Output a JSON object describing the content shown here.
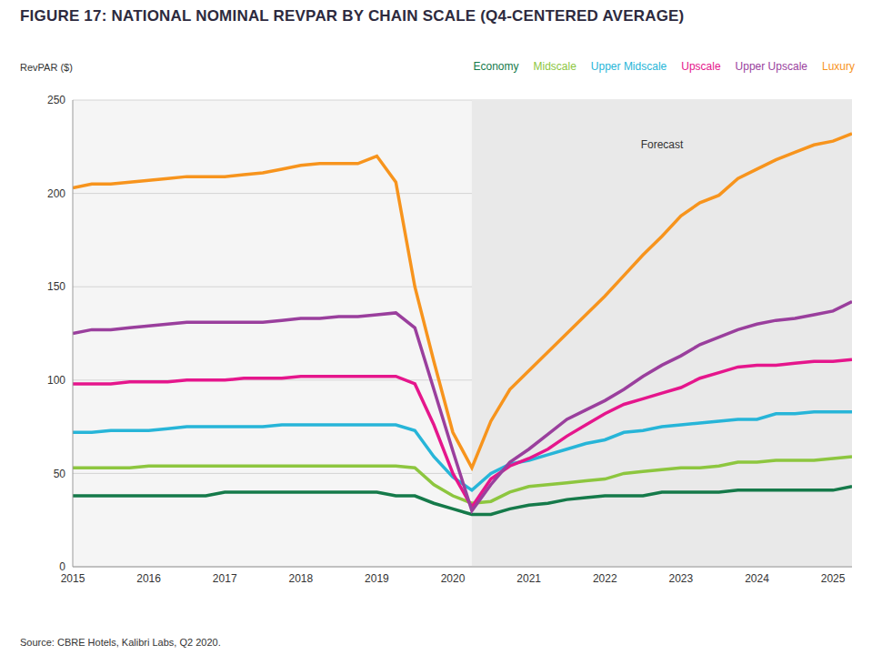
{
  "chart_data": {
    "type": "line",
    "title": "FIGURE 17: NATIONAL NOMINAL REVPAR BY CHAIN SCALE (Q4-CENTERED AVERAGE)",
    "y_label": "RevPAR ($)",
    "source": "Source: CBRE Hotels, Kalibri Labs, Q2 2020.",
    "annotation": {
      "text": "Forecast",
      "x_start": 2020.25,
      "x_end": 2025.25
    },
    "x": [
      2015,
      2015.25,
      2015.5,
      2015.75,
      2016,
      2016.25,
      2016.5,
      2016.75,
      2017,
      2017.25,
      2017.5,
      2017.75,
      2018,
      2018.25,
      2018.5,
      2018.75,
      2019,
      2019.25,
      2019.5,
      2019.75,
      2020,
      2020.25,
      2020.5,
      2020.75,
      2021,
      2021.25,
      2021.5,
      2021.75,
      2022,
      2022.25,
      2022.5,
      2022.75,
      2023,
      2023.25,
      2023.5,
      2023.75,
      2024,
      2024.25,
      2024.5,
      2024.75,
      2025,
      2025.25
    ],
    "series": [
      {
        "name": "Economy",
        "color": "#157a4a",
        "values": [
          38,
          38,
          38,
          38,
          38,
          38,
          38,
          38,
          40,
          40,
          40,
          40,
          40,
          40,
          40,
          40,
          40,
          38,
          38,
          34,
          31,
          28,
          28,
          31,
          33,
          34,
          36,
          37,
          38,
          38,
          38,
          40,
          40,
          40,
          40,
          41,
          41,
          41,
          41,
          41,
          41,
          43
        ]
      },
      {
        "name": "Midscale",
        "color": "#8dc63f",
        "values": [
          53,
          53,
          53,
          53,
          54,
          54,
          54,
          54,
          54,
          54,
          54,
          54,
          54,
          54,
          54,
          54,
          54,
          54,
          53,
          44,
          38,
          34,
          35,
          40,
          43,
          44,
          45,
          46,
          47,
          50,
          51,
          52,
          53,
          53,
          54,
          56,
          56,
          57,
          57,
          57,
          58,
          59
        ]
      },
      {
        "name": "Upper Midscale",
        "color": "#27b5d8",
        "values": [
          72,
          72,
          73,
          73,
          73,
          74,
          75,
          75,
          75,
          75,
          75,
          76,
          76,
          76,
          76,
          76,
          76,
          76,
          73,
          59,
          48,
          41,
          50,
          55,
          57,
          60,
          63,
          66,
          68,
          72,
          73,
          75,
          76,
          77,
          78,
          79,
          79,
          82,
          82,
          83,
          83,
          83
        ]
      },
      {
        "name": "Upscale",
        "color": "#e5168c",
        "values": [
          98,
          98,
          98,
          99,
          99,
          99,
          100,
          100,
          100,
          101,
          101,
          101,
          102,
          102,
          102,
          102,
          102,
          102,
          98,
          76,
          50,
          32,
          47,
          54,
          58,
          63,
          70,
          76,
          82,
          87,
          90,
          93,
          96,
          101,
          104,
          107,
          108,
          108,
          109,
          110,
          110,
          111
        ]
      },
      {
        "name": "Upper Upscale",
        "color": "#9a3f9d",
        "values": [
          125,
          127,
          127,
          128,
          129,
          130,
          131,
          131,
          131,
          131,
          131,
          132,
          133,
          133,
          134,
          134,
          135,
          136,
          128,
          95,
          62,
          30,
          44,
          56,
          63,
          71,
          79,
          84,
          89,
          95,
          102,
          108,
          113,
          119,
          123,
          127,
          130,
          132,
          133,
          135,
          137,
          142
        ]
      },
      {
        "name": "Luxury",
        "color": "#f7941d",
        "values": [
          203,
          205,
          205,
          206,
          207,
          208,
          209,
          209,
          209,
          210,
          211,
          213,
          215,
          216,
          216,
          216,
          220,
          206,
          150,
          110,
          72,
          53,
          78,
          95,
          105,
          115,
          125,
          135,
          145,
          156,
          167,
          177,
          188,
          195,
          199,
          208,
          213,
          218,
          222,
          226,
          228,
          232
        ]
      }
    ],
    "xlim": [
      2015,
      2025.25
    ],
    "xticks": [
      2015,
      2016,
      2017,
      2018,
      2019,
      2020,
      2021,
      2022,
      2023,
      2024,
      2025
    ],
    "ylim": [
      0,
      250
    ],
    "yticks": [
      0,
      50,
      100,
      150,
      200,
      250
    ],
    "grid": true,
    "legend": "top right"
  }
}
